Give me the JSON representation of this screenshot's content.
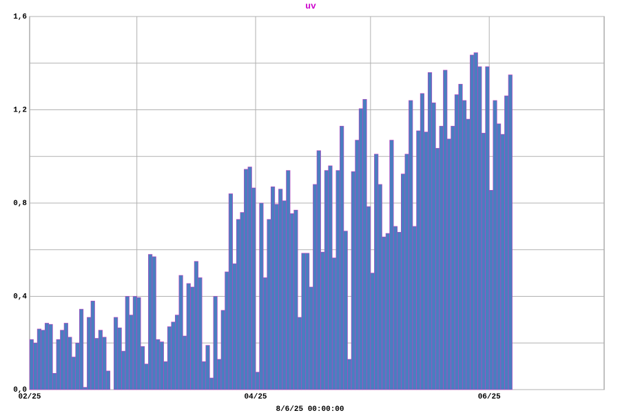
{
  "chart_data": {
    "type": "bar",
    "title": "uv",
    "xlabel": "8/6/25 00:00:00",
    "categories": [
      "02/25",
      null,
      null,
      null,
      null,
      null,
      null,
      null,
      null,
      null,
      null,
      null,
      null,
      null,
      null,
      null,
      null,
      null,
      null,
      null,
      null,
      null,
      null,
      null,
      null,
      null,
      null,
      null,
      null,
      null,
      null,
      null,
      null,
      null,
      null,
      null,
      null,
      null,
      null,
      null,
      null,
      null,
      null,
      null,
      null,
      null,
      null,
      null,
      null,
      null,
      null,
      null,
      null,
      null,
      null,
      null,
      null,
      null,
      null,
      "04/25",
      null,
      null,
      null,
      null,
      null,
      null,
      null,
      null,
      null,
      null,
      null,
      null,
      null,
      null,
      null,
      null,
      null,
      null,
      null,
      null,
      null,
      null,
      null,
      null,
      null,
      null,
      null,
      null,
      null,
      null,
      null,
      null,
      null,
      null,
      null,
      null,
      null,
      null,
      null,
      null,
      null,
      null,
      null,
      null,
      null,
      null,
      null,
      null,
      null,
      null,
      null,
      null,
      null,
      null,
      null,
      null,
      null,
      null,
      null,
      null,
      "06/25",
      null,
      null,
      null,
      null,
      null,
      null,
      null,
      null,
      null,
      null,
      null,
      null,
      null,
      null,
      null,
      null,
      null,
      null,
      null,
      null,
      null,
      null,
      null,
      null,
      null,
      null,
      null,
      null,
      null
    ],
    "values": [
      0.215,
      0.2,
      0.26,
      0.255,
      0.285,
      0.28,
      0.07,
      0.215,
      0.255,
      0.285,
      0.225,
      0.14,
      0.2,
      0.345,
      0.01,
      0.31,
      0.38,
      0.22,
      0.255,
      0.225,
      0.08,
      0,
      0.31,
      0.265,
      0.165,
      0.4,
      0.32,
      0.4,
      0.395,
      0.185,
      0.11,
      0.58,
      0.57,
      0.215,
      0.205,
      0.12,
      0.27,
      0.29,
      0.32,
      0.49,
      0.23,
      0.455,
      0.44,
      0.55,
      0.48,
      0.12,
      0.19,
      0.05,
      0.4,
      0.13,
      0.34,
      0.505,
      0.84,
      0.54,
      0.73,
      0.76,
      0.945,
      0.955,
      0.865,
      0.075,
      0.8,
      0.48,
      0.73,
      0.87,
      0.795,
      0.86,
      0.81,
      0.94,
      0.755,
      0.77,
      0.31,
      0.585,
      0.585,
      0.44,
      0.88,
      1.025,
      0.59,
      0.94,
      0.96,
      0.565,
      0.94,
      1.13,
      0.68,
      0.13,
      0.935,
      1.07,
      1.205,
      1.245,
      0.785,
      0.5,
      1.01,
      0.88,
      0.655,
      0.67,
      1.07,
      0.7,
      0.675,
      0.925,
      1.01,
      1.24,
      0.7,
      1.11,
      1.27,
      1.105,
      1.36,
      1.23,
      1.035,
      1.13,
      1.37,
      1.075,
      1.13,
      1.265,
      1.31,
      1.24,
      1.16,
      1.435,
      1.445,
      1.385,
      1.1,
      1.385,
      0.855,
      1.24,
      1.14,
      1.095,
      1.26,
      1.35,
      null,
      null,
      null,
      null,
      null,
      null,
      null,
      null,
      null,
      null,
      null,
      null,
      null,
      null,
      null,
      null,
      null,
      null,
      null,
      null,
      null,
      null,
      null,
      null
    ],
    "color": "#4a7ebf",
    "edge_color": "#c040c0",
    "title_color": "#cc00cc",
    "ylim": [
      0,
      1.6
    ],
    "yticks": [
      {
        "value": 0,
        "label": "0,0"
      },
      {
        "value": 0.4,
        "label": "0,4"
      },
      {
        "value": 0.8,
        "label": "0,8"
      },
      {
        "value": 1.2,
        "label": "1,2"
      },
      {
        "value": 1.6,
        "label": "1,6"
      }
    ],
    "y_minor_gridlines": [
      0.2,
      0.6,
      1.0,
      1.4
    ],
    "x_gridlines": [
      28,
      59,
      89,
      120
    ],
    "grid": true
  }
}
